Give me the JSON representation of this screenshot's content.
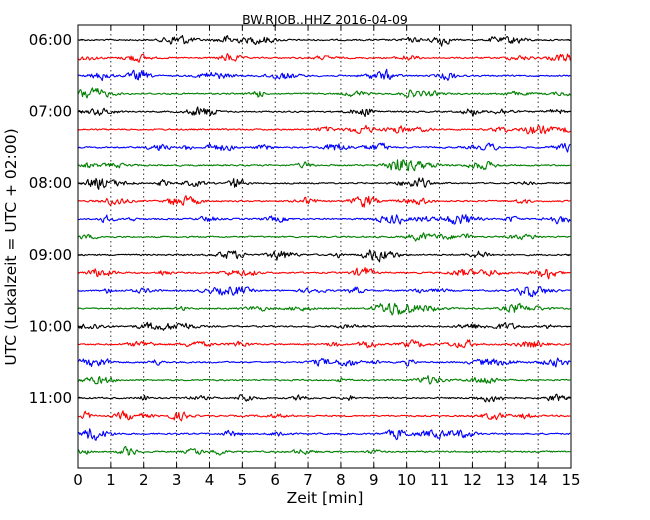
{
  "chart_data": {
    "type": "line",
    "title": "BW.RJOB..HHZ 2016-04-09",
    "xlabel": "Zeit  [min]",
    "ylabel": "UTC (Lokalzeit = UTC + 02:00)",
    "xlim": [
      0,
      15
    ],
    "x_ticks": [
      "0",
      "1",
      "2",
      "3",
      "4",
      "5",
      "6",
      "7",
      "8",
      "9",
      "10",
      "11",
      "12",
      "13",
      "14",
      "15"
    ],
    "y_ticks": [
      "06:00",
      "07:00",
      "08:00",
      "09:00",
      "10:00",
      "11:00"
    ],
    "trace_minutes": 15,
    "traces_per_hour": 4,
    "trace_count": 24,
    "first_trace_start": "06:00",
    "trace_colors": [
      "#000000",
      "#ff0000",
      "#0000ff",
      "#008000"
    ],
    "vertical_grid": "dotted",
    "series": [
      {
        "start": "06:00"
      },
      {
        "start": "06:15"
      },
      {
        "start": "06:30"
      },
      {
        "start": "06:45"
      },
      {
        "start": "07:00"
      },
      {
        "start": "07:15"
      },
      {
        "start": "07:30"
      },
      {
        "start": "07:45"
      },
      {
        "start": "08:00"
      },
      {
        "start": "08:15"
      },
      {
        "start": "08:30"
      },
      {
        "start": "08:45"
      },
      {
        "start": "09:00"
      },
      {
        "start": "09:15"
      },
      {
        "start": "09:30"
      },
      {
        "start": "09:45"
      },
      {
        "start": "10:00"
      },
      {
        "start": "10:15"
      },
      {
        "start": "10:30"
      },
      {
        "start": "10:45"
      },
      {
        "start": "11:00"
      },
      {
        "start": "11:15"
      },
      {
        "start": "11:30"
      },
      {
        "start": "11:45"
      }
    ]
  }
}
